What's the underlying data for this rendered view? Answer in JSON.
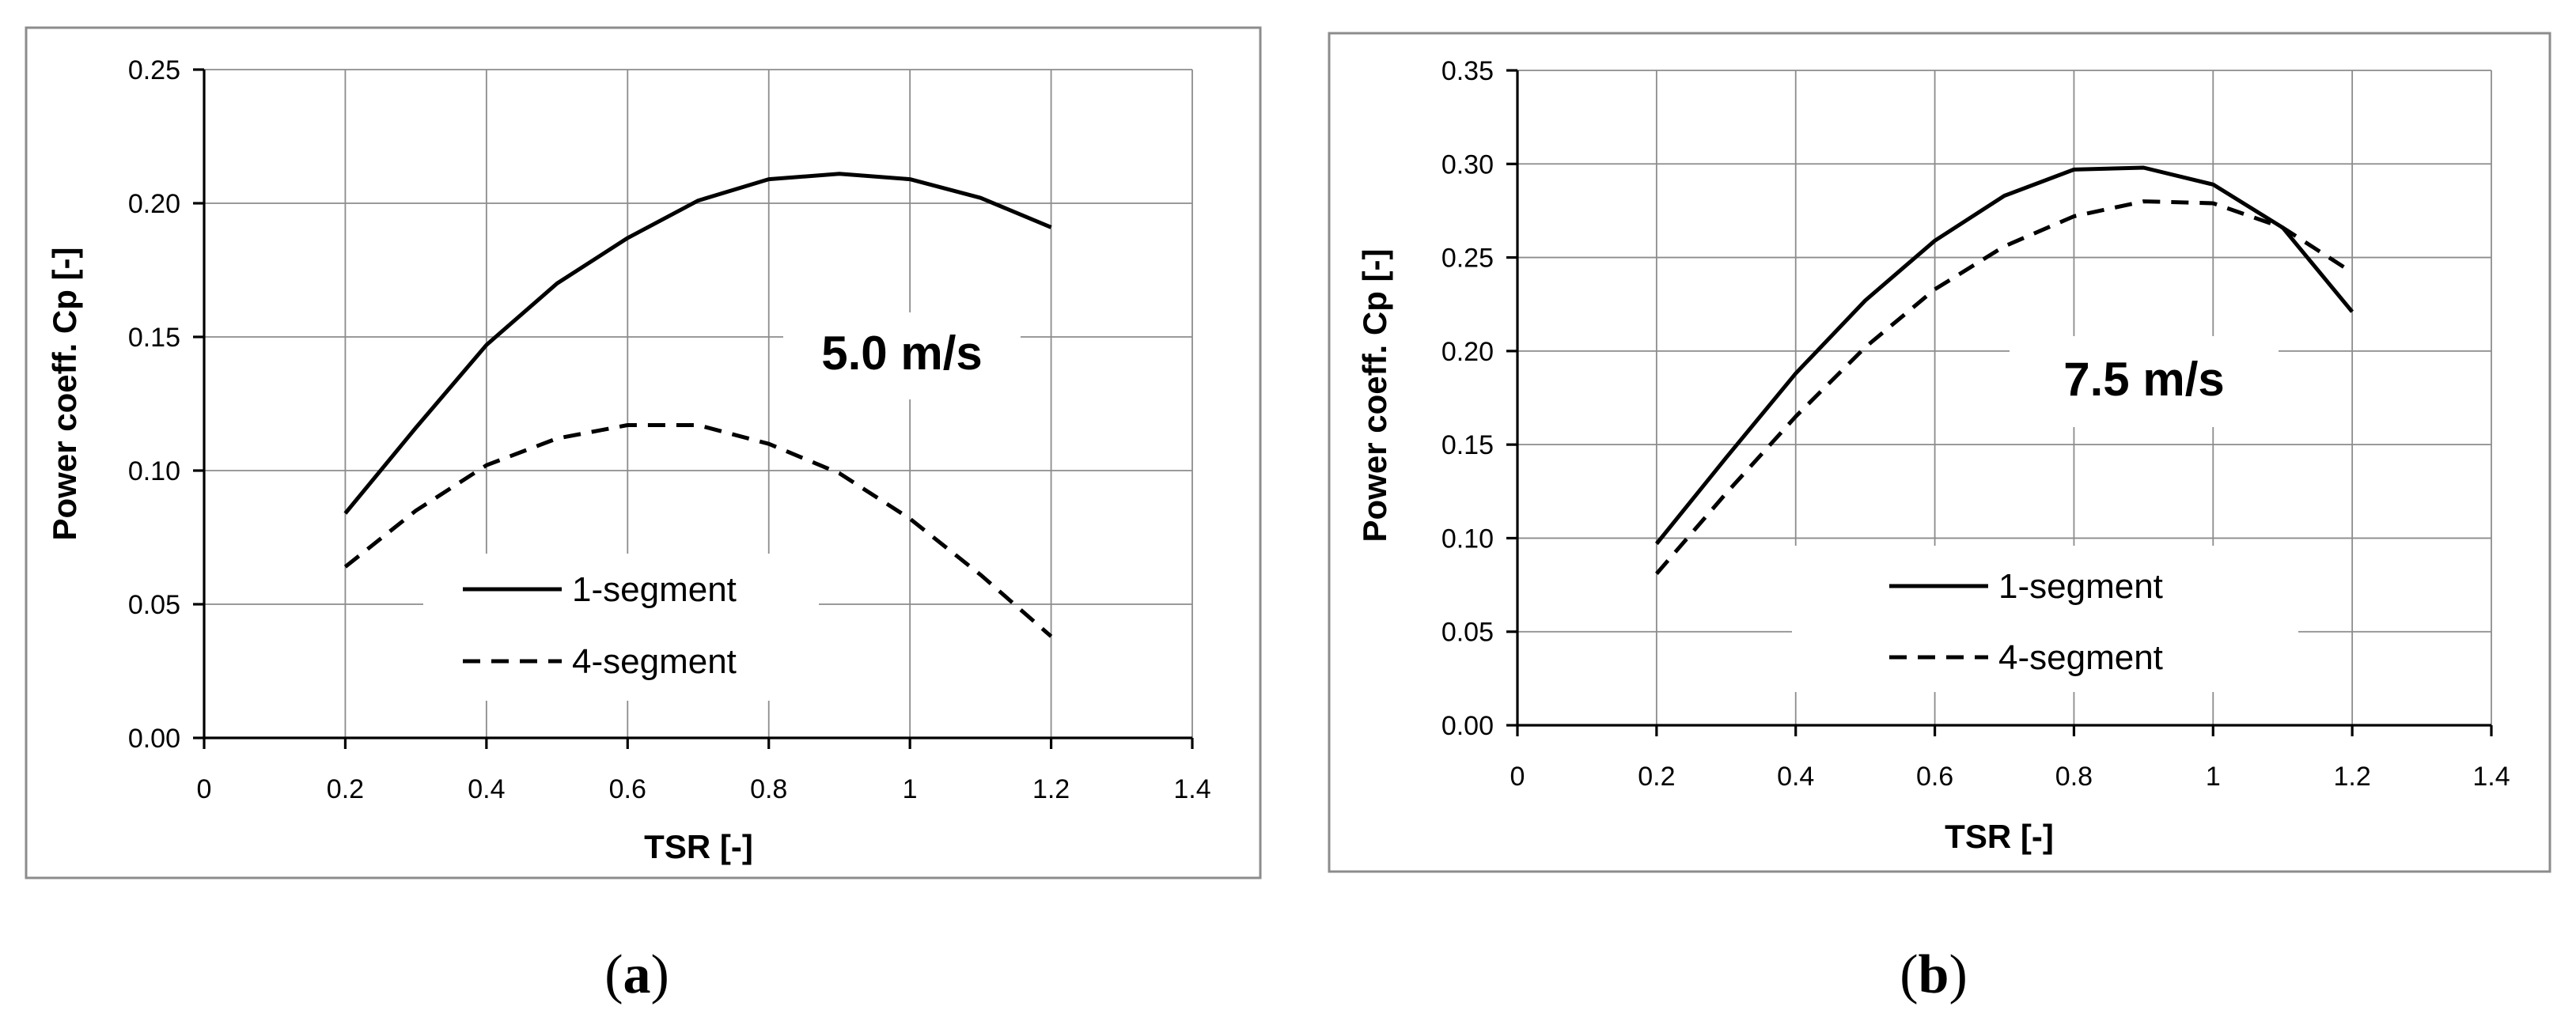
{
  "chart_data": [
    {
      "type": "line",
      "panel": "(a)",
      "annotation": "5.0 m/s",
      "xlabel": "TSR [-]",
      "ylabel": "Power coeff. Cp [-]",
      "xlim": [
        0,
        1.4
      ],
      "ylim": [
        0,
        0.25
      ],
      "x_ticks": [
        "0",
        "0.2",
        "0.4",
        "0.6",
        "0.8",
        "1",
        "1.2",
        "1.4"
      ],
      "y_ticks": [
        "0.00",
        "0.05",
        "0.10",
        "0.15",
        "0.20",
        "0.25"
      ],
      "grid": true,
      "legend_position": "lower-center",
      "series": [
        {
          "name": "1-segment",
          "style": "solid",
          "x": [
            0.2,
            0.3,
            0.4,
            0.5,
            0.6,
            0.7,
            0.8,
            0.9,
            1.0,
            1.1,
            1.2
          ],
          "y": [
            0.084,
            0.116,
            0.147,
            0.17,
            0.187,
            0.201,
            0.209,
            0.211,
            0.209,
            0.202,
            0.191
          ]
        },
        {
          "name": "4-segment",
          "style": "dashed",
          "x": [
            0.2,
            0.3,
            0.4,
            0.5,
            0.6,
            0.7,
            0.8,
            0.9,
            1.0,
            1.1,
            1.2
          ],
          "y": [
            0.064,
            0.085,
            0.102,
            0.112,
            0.117,
            0.117,
            0.11,
            0.099,
            0.082,
            0.061,
            0.038
          ]
        }
      ]
    },
    {
      "type": "line",
      "panel": "(b)",
      "annotation": "7.5 m/s",
      "xlabel": "TSR [-]",
      "ylabel": "Power coeff. Cp [-]",
      "xlim": [
        0,
        1.4
      ],
      "ylim": [
        0,
        0.35
      ],
      "x_ticks": [
        "0",
        "0.2",
        "0.4",
        "0.6",
        "0.8",
        "1",
        "1.2",
        "1.4"
      ],
      "y_ticks": [
        "0.00",
        "0.05",
        "0.10",
        "0.15",
        "0.20",
        "0.25",
        "0.30",
        "0.35"
      ],
      "grid": true,
      "legend_position": "lower-center",
      "series": [
        {
          "name": "1-segment",
          "style": "solid",
          "x": [
            0.2,
            0.3,
            0.4,
            0.5,
            0.6,
            0.7,
            0.8,
            0.9,
            1.0,
            1.1,
            1.2
          ],
          "y": [
            0.097,
            0.143,
            0.188,
            0.227,
            0.259,
            0.283,
            0.297,
            0.298,
            0.289,
            0.266,
            0.221
          ]
        },
        {
          "name": "4-segment",
          "style": "dashed",
          "x": [
            0.2,
            0.3,
            0.4,
            0.5,
            0.6,
            0.7,
            0.8,
            0.9,
            1.0,
            1.1,
            1.2
          ],
          "y": [
            0.081,
            0.124,
            0.165,
            0.202,
            0.233,
            0.256,
            0.272,
            0.28,
            0.279,
            0.266,
            0.242
          ]
        }
      ]
    }
  ]
}
